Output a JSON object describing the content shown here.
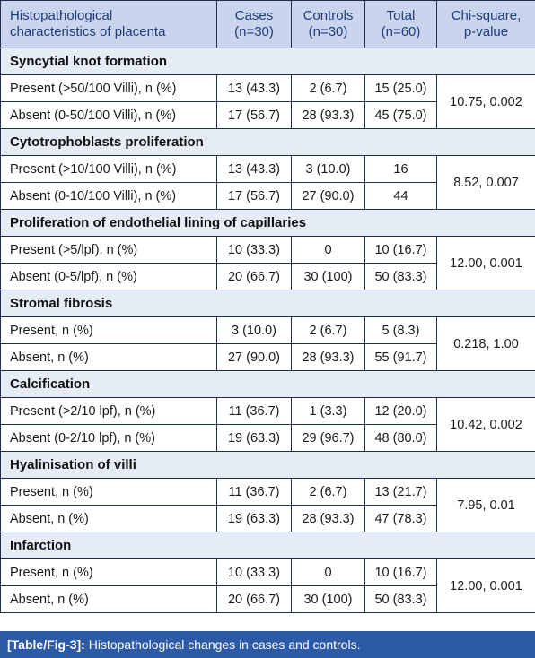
{
  "table": {
    "headers": {
      "characteristic_line1": "Histopathological",
      "characteristic_line2": "characteristics of placenta",
      "cases_line1": "Cases",
      "cases_line2": "(n=30)",
      "controls_line1": "Controls",
      "controls_line2": "(n=30)",
      "total_line1": "Total",
      "total_line2": "(n=60)",
      "chi_line1": "Chi-square,",
      "chi_line2": "p-value"
    },
    "sections": [
      {
        "title": "Syncytial knot formation",
        "chi": "10.75, 0.002",
        "rows": [
          {
            "label": "Present (>50/100 Villi), n (%)",
            "cases": "13 (43.3)",
            "controls": "2 (6.7)",
            "total": "15 (25.0)"
          },
          {
            "label": "Absent (0-50/100 Villi), n (%)",
            "cases": "17 (56.7)",
            "controls": "28 (93.3)",
            "total": "45 (75.0)"
          }
        ]
      },
      {
        "title": "Cytotrophoblasts proliferation",
        "chi": "8.52, 0.007",
        "rows": [
          {
            "label": "Present (>10/100 Villi), n (%)",
            "cases": "13 (43.3)",
            "controls": "3 (10.0)",
            "total": "16"
          },
          {
            "label": "Absent (0-10/100 Villi), n (%)",
            "cases": "17 (56.7)",
            "controls": "27 (90.0)",
            "total": "44"
          }
        ]
      },
      {
        "title": "Proliferation of endothelial lining of capillaries",
        "chi": "12.00, 0.001",
        "rows": [
          {
            "label": "Present (>5/lpf), n (%)",
            "cases": "10 (33.3)",
            "controls": "0",
            "total": "10 (16.7)"
          },
          {
            "label": "Absent (0-5/lpf), n (%)",
            "cases": "20 (66.7)",
            "controls": "30 (100)",
            "total": "50 (83.3)"
          }
        ]
      },
      {
        "title": "Stromal fibrosis",
        "chi": "0.218, 1.00",
        "rows": [
          {
            "label": "Present, n (%)",
            "cases": "3 (10.0)",
            "controls": "2 (6.7)",
            "total": "5 (8.3)"
          },
          {
            "label": "Absent, n (%)",
            "cases": "27 (90.0)",
            "controls": "28 (93.3)",
            "total": "55 (91.7)"
          }
        ]
      },
      {
        "title": "Calcification",
        "chi": "10.42, 0.002",
        "rows": [
          {
            "label": "Present (>2/10 lpf), n (%)",
            "cases": "11 (36.7)",
            "controls": "1 (3.3)",
            "total": "12 (20.0)"
          },
          {
            "label": "Absent (0-2/10 lpf), n (%)",
            "cases": "19 (63.3)",
            "controls": "29 (96.7)",
            "total": "48 (80.0)"
          }
        ]
      },
      {
        "title": "Hyalinisation of villi",
        "chi": "7.95, 0.01",
        "rows": [
          {
            "label": "Present, n (%)",
            "cases": "11 (36.7)",
            "controls": "2 (6.7)",
            "total": "13 (21.7)"
          },
          {
            "label": "Absent, n (%)",
            "cases": "19 (63.3)",
            "controls": "28 (93.3)",
            "total": "47 (78.3)"
          }
        ]
      },
      {
        "title": "Infarction",
        "chi": "12.00, 0.001",
        "rows": [
          {
            "label": "Present, n (%)",
            "cases": "10 (33.3)",
            "controls": "0",
            "total": "10 (16.7)"
          },
          {
            "label": "Absent, n (%)",
            "cases": "20 (66.7)",
            "controls": "30 (100)",
            "total": "50 (83.3)"
          }
        ]
      }
    ]
  },
  "caption": {
    "label": "[Table/Fig-3]:",
    "text": "Histopathological changes in cases and controls."
  },
  "colors": {
    "header_bg": "#c8d5ec",
    "header_text": "#1f3b7a",
    "section_bg": "#e6ecf6",
    "caption_bg": "#2c5aa6",
    "border": "#1f2f4a"
  }
}
